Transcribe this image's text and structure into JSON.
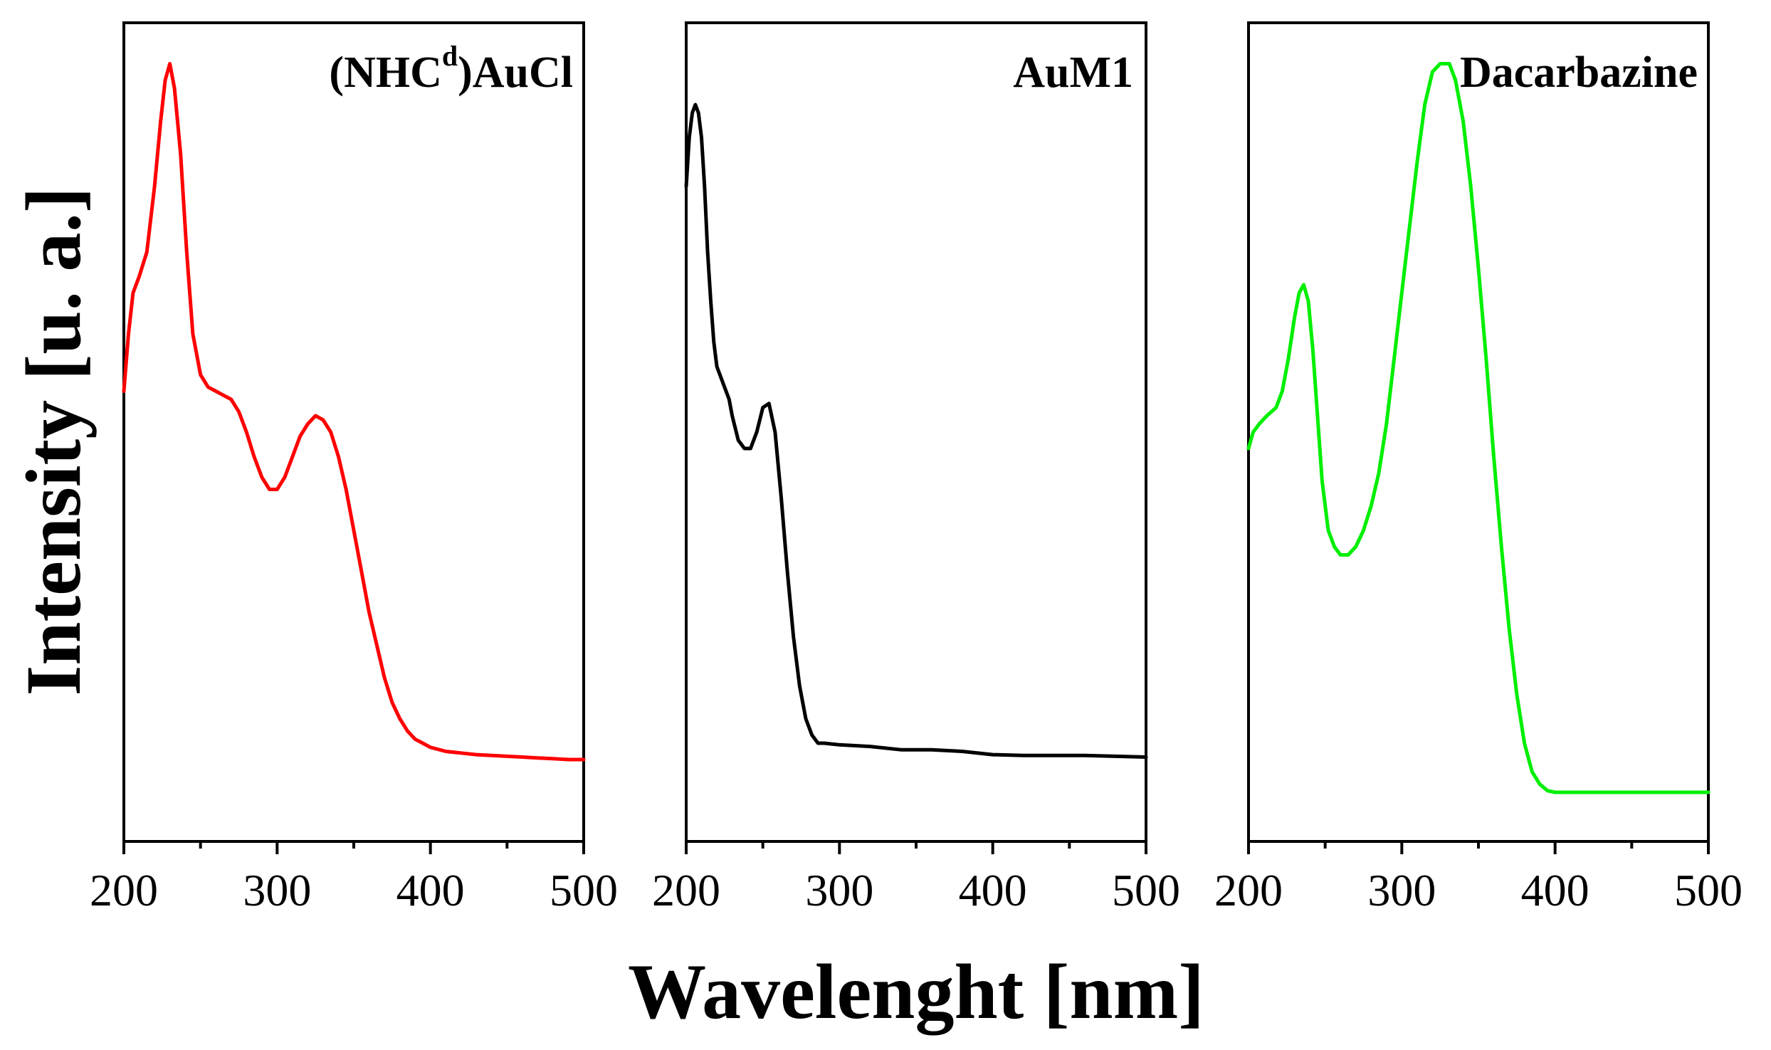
{
  "chart_data": {
    "type": "line",
    "xlabel": "Wavelenght [nm]",
    "ylabel": "Intensity [u. a.]",
    "x_ticks": [
      200,
      300,
      400,
      500
    ],
    "xlim": [
      200,
      500
    ],
    "ylim": [
      0,
      1
    ],
    "y_tick_labels_shown": false,
    "grid": false,
    "legend": "none",
    "panels": [
      {
        "title_main": "(NHC",
        "title_sup": "d",
        "title_rest": ")AuCl",
        "color": "#ff0000",
        "x": [
          200,
          203,
          206,
          210,
          215,
          220,
          224,
          227,
          230,
          233,
          237,
          241,
          245,
          250,
          255,
          260,
          265,
          270,
          275,
          280,
          285,
          290,
          295,
          300,
          305,
          310,
          315,
          320,
          325,
          330,
          335,
          340,
          345,
          350,
          355,
          360,
          365,
          370,
          375,
          380,
          385,
          390,
          395,
          400,
          410,
          420,
          430,
          440,
          450,
          460,
          470,
          480,
          490,
          500
        ],
        "y": [
          0.55,
          0.62,
          0.67,
          0.69,
          0.72,
          0.8,
          0.88,
          0.93,
          0.95,
          0.92,
          0.84,
          0.72,
          0.62,
          0.57,
          0.555,
          0.55,
          0.545,
          0.54,
          0.525,
          0.5,
          0.47,
          0.445,
          0.43,
          0.43,
          0.445,
          0.47,
          0.495,
          0.51,
          0.52,
          0.515,
          0.5,
          0.47,
          0.43,
          0.38,
          0.33,
          0.28,
          0.24,
          0.2,
          0.17,
          0.15,
          0.135,
          0.125,
          0.12,
          0.115,
          0.11,
          0.108,
          0.106,
          0.105,
          0.104,
          0.103,
          0.102,
          0.101,
          0.1,
          0.1
        ]
      },
      {
        "title_main": "AuM1",
        "title_sup": "",
        "title_rest": "",
        "color": "#000000",
        "x": [
          200,
          202,
          204,
          206,
          208,
          210,
          212,
          214,
          216,
          218,
          220,
          222,
          224,
          226,
          228,
          230,
          234,
          238,
          242,
          246,
          250,
          254,
          258,
          262,
          266,
          270,
          274,
          278,
          282,
          286,
          290,
          300,
          320,
          340,
          360,
          380,
          400,
          420,
          440,
          460,
          480,
          500
        ],
        "y": [
          0.8,
          0.86,
          0.89,
          0.9,
          0.89,
          0.86,
          0.8,
          0.72,
          0.66,
          0.61,
          0.58,
          0.57,
          0.56,
          0.55,
          0.54,
          0.52,
          0.49,
          0.48,
          0.48,
          0.5,
          0.53,
          0.535,
          0.5,
          0.42,
          0.33,
          0.25,
          0.19,
          0.15,
          0.13,
          0.12,
          0.12,
          0.118,
          0.116,
          0.112,
          0.112,
          0.11,
          0.106,
          0.105,
          0.105,
          0.105,
          0.104,
          0.103
        ]
      },
      {
        "title_main": "Dacarbazine",
        "title_sup": "",
        "title_rest": "",
        "color": "#00ee00",
        "x": [
          200,
          203,
          207,
          212,
          218,
          222,
          226,
          230,
          233,
          236,
          239,
          242,
          245,
          248,
          252,
          256,
          260,
          265,
          270,
          275,
          280,
          285,
          290,
          295,
          300,
          305,
          310,
          315,
          320,
          325,
          328,
          331,
          335,
          340,
          345,
          350,
          355,
          360,
          365,
          370,
          375,
          380,
          385,
          390,
          395,
          400,
          410,
          420,
          440,
          460,
          480,
          500
        ],
        "y": [
          0.48,
          0.5,
          0.51,
          0.52,
          0.53,
          0.55,
          0.59,
          0.64,
          0.67,
          0.68,
          0.66,
          0.6,
          0.52,
          0.44,
          0.38,
          0.36,
          0.35,
          0.35,
          0.36,
          0.38,
          0.41,
          0.45,
          0.51,
          0.59,
          0.67,
          0.75,
          0.83,
          0.9,
          0.94,
          0.95,
          0.95,
          0.95,
          0.93,
          0.88,
          0.8,
          0.7,
          0.59,
          0.47,
          0.36,
          0.26,
          0.18,
          0.12,
          0.085,
          0.07,
          0.062,
          0.06,
          0.06,
          0.06,
          0.06,
          0.06,
          0.06,
          0.06
        ]
      }
    ]
  }
}
